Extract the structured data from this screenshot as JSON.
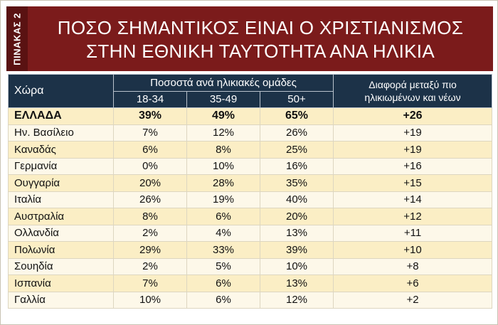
{
  "side_label": "ΠΙΝΑΚΑΣ 2",
  "title_line1": "ΠΟΣΟ ΣΗΜΑΝΤΙΚΟΣ ΕΙΝΑΙ Ο ΧΡΙΣΤΙΑΝΙΣΜΟΣ",
  "title_line2": "ΣΤΗΝ ΕΘΝΙΚΗ ΤΑΥΤΟΤΗΤΑ ΑΝΑ ΗΛΙΚΙΑ",
  "columns": {
    "country": "Χώρα",
    "group": "Ποσοστά ανά ηλικιακές ομάδες",
    "age1": "18-34",
    "age2": "35-49",
    "age3": "50+",
    "diff_line1": "Διαφορά μεταξύ πιο",
    "diff_line2": "ηλικιωμένων και νέων"
  },
  "rows": [
    {
      "country": "ΕΛΛΑΔΑ",
      "a": "39%",
      "b": "49%",
      "c": "65%",
      "diff": "+26"
    },
    {
      "country": "Ην. Βασίλειο",
      "a": "7%",
      "b": "12%",
      "c": "26%",
      "diff": "+19"
    },
    {
      "country": "Καναδάς",
      "a": "6%",
      "b": "8%",
      "c": "25%",
      "diff": "+19"
    },
    {
      "country": "Γερμανία",
      "a": "0%",
      "b": "10%",
      "c": "16%",
      "diff": "+16"
    },
    {
      "country": "Ουγγαρία",
      "a": "20%",
      "b": "28%",
      "c": "35%",
      "diff": "+15"
    },
    {
      "country": "Ιταλία",
      "a": "26%",
      "b": "19%",
      "c": "40%",
      "diff": "+14"
    },
    {
      "country": "Αυστραλία",
      "a": "8%",
      "b": "6%",
      "c": "20%",
      "diff": "+12"
    },
    {
      "country": "Ολλανδία",
      "a": "2%",
      "b": "4%",
      "c": "13%",
      "diff": "+11"
    },
    {
      "country": "Πολωνία",
      "a": "29%",
      "b": "33%",
      "c": "39%",
      "diff": "+10"
    },
    {
      "country": "Σουηδία",
      "a": "2%",
      "b": "5%",
      "c": "10%",
      "diff": "+8"
    },
    {
      "country": "Ισπανία",
      "a": "7%",
      "b": "6%",
      "c": "13%",
      "diff": "+6"
    },
    {
      "country": "Γαλλία",
      "a": "10%",
      "b": "6%",
      "c": "12%",
      "diff": "+2"
    }
  ],
  "colors": {
    "header_bg": "#7b1b1b",
    "table_head_bg": "#1c3248",
    "row_odd": "#fbeec5",
    "row_even": "#fdf8e9"
  }
}
